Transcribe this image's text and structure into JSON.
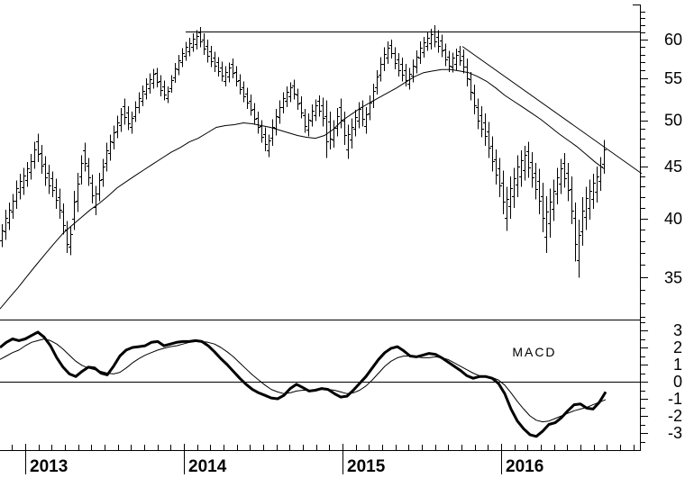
{
  "chart_data": {
    "type": "ohlc",
    "title": "",
    "background": "#ffffff",
    "ink_color": "#000000",
    "x_axis": {
      "year_labels": [
        "2013",
        "2014",
        "2015",
        "2016"
      ],
      "year_values": [
        2013,
        2014,
        2015,
        2016
      ],
      "minor_tick": "monthly",
      "t_min": 2012.84,
      "t_max": 2016.88
    },
    "price_panel": {
      "scale": "log",
      "y_tick_labels": [
        "60",
        "55",
        "50",
        "45",
        "40",
        "35"
      ],
      "y_tick_values": [
        60,
        55,
        50,
        45,
        40,
        35
      ],
      "minor_tick_step": 1,
      "minor_tick_range": [
        32,
        64
      ],
      "resistance_line": {
        "price": 61.1,
        "t1": 2014.011,
        "t2": 2016.875
      },
      "trendline": {
        "t1": 2015.756,
        "p1": 59.1,
        "t2": 2016.881,
        "p2": 44.3
      },
      "moving_average": {
        "t0": 2012.8409,
        "dt_years": 0.0568182,
        "values": [
          32.6,
          33.4,
          34.2,
          35.1,
          36.0,
          36.9,
          37.8,
          38.7,
          39.4,
          40.1,
          40.8,
          41.4,
          42.1,
          42.9,
          43.5,
          44.1,
          44.7,
          45.3,
          45.9,
          46.5,
          47.0,
          47.6,
          48.0,
          48.6,
          49.2,
          49.4,
          49.5,
          49.7,
          49.6,
          49.4,
          49.2,
          48.9,
          48.6,
          48.3,
          48.1,
          48.0,
          48.3,
          49.0,
          50.0,
          50.7,
          51.4,
          52.0,
          52.6,
          53.2,
          53.8,
          54.5,
          55.2,
          55.7,
          55.9,
          56.1,
          56.1,
          55.9,
          55.7,
          55.2,
          54.6,
          53.8,
          52.9,
          52.2,
          51.5,
          50.8,
          50.1,
          49.3,
          48.5,
          47.8,
          47.1,
          46.3,
          45.5,
          44.8
        ]
      },
      "bars": {
        "t0": 2012.8523,
        "dt_years": 0.0227273,
        "hl": [
          39.5,
          37.5,
          40.8,
          38.1,
          41.5,
          39.0,
          42.3,
          40.0,
          43.6,
          40.9,
          44.3,
          41.8,
          44.9,
          42.2,
          45.5,
          43.0,
          46.3,
          43.7,
          47.6,
          44.8,
          48.5,
          45.5,
          47.3,
          44.3,
          46.1,
          43.1,
          45.2,
          42.3,
          44.5,
          42.0,
          43.8,
          40.9,
          42.8,
          40.0,
          41.4,
          38.6,
          39.8,
          37.0,
          39.3,
          36.8,
          42.6,
          39.0,
          44.4,
          40.6,
          46.2,
          43.2,
          47.5,
          44.5,
          45.9,
          43.1,
          44.2,
          41.4,
          43.1,
          40.3,
          44.4,
          41.6,
          45.8,
          43.0,
          47.5,
          44.5,
          48.4,
          45.6,
          49.4,
          46.8,
          50.5,
          48.0,
          51.4,
          48.7,
          52.5,
          49.5,
          51.6,
          48.9,
          51.0,
          48.5,
          52.2,
          49.8,
          53.3,
          50.8,
          54.1,
          51.6,
          55.0,
          52.4,
          55.6,
          53.1,
          56.2,
          53.7,
          56.3,
          53.9,
          55.4,
          52.8,
          54.7,
          52.3,
          54.0,
          52.0,
          55.4,
          53.2,
          56.9,
          54.4,
          58.0,
          55.4,
          58.9,
          56.4,
          59.7,
          57.2,
          60.3,
          57.8,
          60.9,
          58.4,
          61.3,
          58.7,
          61.8,
          59.0,
          60.9,
          58.0,
          60.0,
          57.0,
          59.2,
          56.4,
          58.4,
          55.8,
          57.7,
          55.2,
          57.1,
          54.6,
          56.5,
          54.0,
          57.0,
          54.5,
          57.5,
          55.0,
          56.5,
          54.0,
          55.5,
          53.0,
          54.6,
          52.1,
          53.8,
          51.3,
          53.0,
          50.5,
          52.0,
          49.5,
          51.0,
          48.5,
          50.0,
          47.5,
          49.2,
          46.6,
          48.4,
          46.0,
          50.1,
          47.2,
          51.3,
          48.3,
          52.3,
          49.6,
          53.3,
          50.8,
          54.0,
          51.5,
          54.5,
          52.1,
          54.8,
          52.4,
          53.7,
          51.2,
          52.8,
          50.2,
          51.3,
          48.6,
          50.8,
          48.2,
          51.8,
          49.3,
          52.4,
          49.9,
          52.9,
          50.4,
          52.6,
          49.3,
          52.3,
          45.9,
          51.0,
          46.8,
          50.0,
          47.0,
          51.4,
          48.2,
          52.5,
          49.1,
          51.0,
          47.3,
          49.5,
          45.8,
          50.2,
          46.9,
          51.2,
          48.2,
          52.1,
          49.1,
          52.3,
          49.3,
          51.5,
          48.5,
          52.9,
          50.0,
          54.3,
          51.4,
          56.0,
          53.0,
          57.7,
          54.6,
          59.0,
          55.9,
          59.8,
          56.8,
          60.0,
          57.5,
          59.0,
          56.1,
          58.2,
          55.2,
          57.6,
          54.6,
          56.8,
          54.0,
          56.3,
          53.6,
          57.4,
          54.5,
          58.6,
          55.6,
          59.8,
          56.8,
          60.4,
          57.6,
          61.0,
          58.5,
          61.5,
          58.7,
          62.0,
          59.0,
          61.3,
          58.3,
          60.7,
          57.7,
          59.5,
          56.5,
          58.5,
          55.8,
          58.3,
          55.7,
          58.8,
          56.0,
          59.2,
          56.6,
          58.7,
          55.6,
          57.5,
          54.0,
          55.8,
          52.3,
          54.2,
          50.7,
          52.5,
          49.0,
          51.6,
          48.1,
          50.8,
          47.2,
          49.8,
          45.9,
          48.2,
          44.5,
          46.8,
          43.2,
          45.9,
          42.0,
          44.6,
          40.4,
          43.0,
          38.9,
          44.0,
          40.0,
          44.9,
          41.0,
          46.2,
          42.0,
          46.7,
          43.0,
          47.2,
          43.6,
          47.6,
          43.9,
          46.5,
          42.9,
          45.4,
          41.8,
          44.8,
          40.4,
          43.4,
          38.8,
          42.1,
          37.0,
          42.8,
          38.3,
          43.7,
          39.8,
          44.9,
          41.3,
          45.8,
          42.3,
          46.4,
          42.9,
          45.4,
          41.6,
          44.0,
          39.5,
          41.5,
          36.3,
          39.9,
          35.0,
          42.0,
          37.6,
          43.0,
          39.0,
          43.7,
          39.9,
          44.3,
          40.9,
          45.0,
          41.5,
          46.0,
          42.6,
          47.8,
          44.3
        ]
      }
    },
    "macd_panel": {
      "label": "MACD",
      "label_t": 2016.07,
      "label_v": 1.75,
      "y_tick_labels": [
        "3",
        "2",
        "1",
        "0",
        "-1",
        "-2",
        "-3"
      ],
      "y_tick_values": [
        3,
        2,
        1,
        0,
        -1,
        -2,
        -3
      ],
      "minor_tick_step": 0.5,
      "minor_tick_range": [
        -3.5,
        3.5
      ],
      "series": [
        {
          "name": "macd",
          "style": "thick",
          "t0": 2012.8409,
          "dt_years": 0.0397727,
          "values": [
            2.0,
            2.3,
            2.5,
            2.4,
            2.5,
            2.7,
            2.9,
            2.6,
            2.1,
            1.4,
            0.85,
            0.45,
            0.3,
            0.6,
            0.85,
            0.8,
            0.5,
            0.4,
            0.9,
            1.5,
            1.85,
            2.0,
            2.05,
            2.1,
            2.3,
            2.35,
            2.1,
            2.2,
            2.3,
            2.35,
            2.35,
            2.4,
            2.35,
            2.1,
            1.75,
            1.35,
            1.0,
            0.6,
            0.2,
            -0.15,
            -0.45,
            -0.65,
            -0.8,
            -0.95,
            -1.0,
            -0.8,
            -0.4,
            -0.15,
            -0.35,
            -0.55,
            -0.5,
            -0.4,
            -0.45,
            -0.7,
            -0.9,
            -0.85,
            -0.5,
            -0.1,
            0.3,
            0.8,
            1.3,
            1.7,
            1.95,
            2.05,
            1.8,
            1.5,
            1.45,
            1.55,
            1.65,
            1.6,
            1.4,
            1.15,
            0.9,
            0.65,
            0.35,
            0.2,
            0.3,
            0.3,
            0.2,
            -0.1,
            -0.7,
            -1.6,
            -2.3,
            -2.75,
            -3.1,
            -3.2,
            -2.9,
            -2.5,
            -2.4,
            -2.1,
            -1.7,
            -1.35,
            -1.3,
            -1.55,
            -1.6,
            -1.2,
            -0.6
          ]
        },
        {
          "name": "signal",
          "style": "thin",
          "t0": 2012.8409,
          "dt_years": 0.0397727,
          "values": [
            1.3,
            1.5,
            1.7,
            1.85,
            2.1,
            2.3,
            2.4,
            2.5,
            2.4,
            2.2,
            1.9,
            1.55,
            1.2,
            0.95,
            0.8,
            0.7,
            0.6,
            0.5,
            0.45,
            0.55,
            0.8,
            1.1,
            1.35,
            1.55,
            1.7,
            1.85,
            1.95,
            2.05,
            2.1,
            2.2,
            2.3,
            2.35,
            2.35,
            2.3,
            2.2,
            2.0,
            1.75,
            1.45,
            1.1,
            0.75,
            0.4,
            0.1,
            -0.2,
            -0.45,
            -0.6,
            -0.7,
            -0.65,
            -0.55,
            -0.5,
            -0.5,
            -0.5,
            -0.45,
            -0.45,
            -0.5,
            -0.6,
            -0.7,
            -0.65,
            -0.5,
            -0.25,
            0.1,
            0.5,
            0.9,
            1.2,
            1.4,
            1.5,
            1.5,
            1.45,
            1.4,
            1.4,
            1.45,
            1.4,
            1.3,
            1.1,
            0.9,
            0.7,
            0.5,
            0.35,
            0.3,
            0.25,
            0.1,
            -0.2,
            -0.65,
            -1.15,
            -1.6,
            -2.0,
            -2.25,
            -2.35,
            -2.3,
            -2.15,
            -2.0,
            -1.85,
            -1.7,
            -1.6,
            -1.5,
            -1.35,
            -1.2,
            -1.05
          ]
        }
      ]
    }
  }
}
